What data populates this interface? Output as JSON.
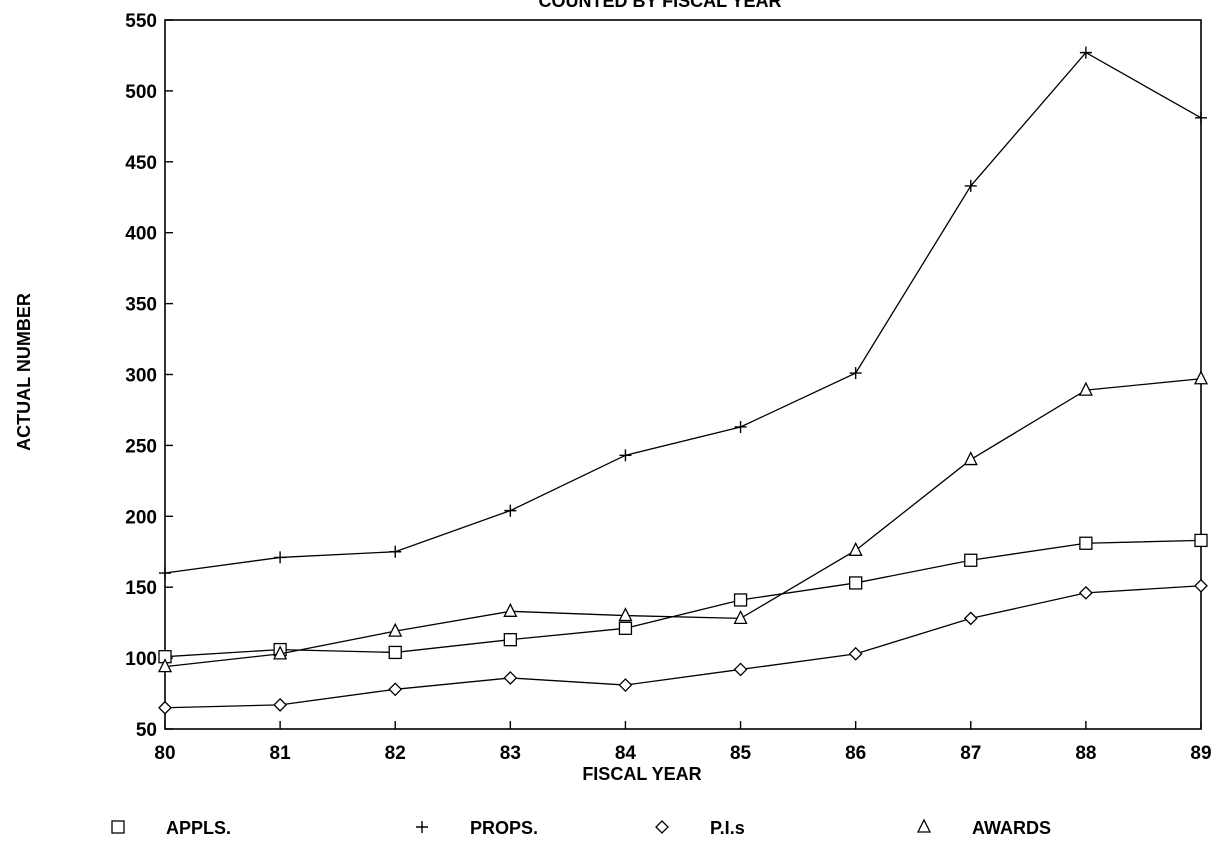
{
  "chart_data": {
    "type": "line",
    "title": "COUNTED BY FISCAL YEAR",
    "xlabel": "FISCAL YEAR",
    "ylabel": "ACTUAL NUMBER",
    "categories": [
      "80",
      "81",
      "82",
      "83",
      "84",
      "85",
      "86",
      "87",
      "88",
      "89"
    ],
    "y_ticks": [
      "50",
      "100",
      "150",
      "200",
      "250",
      "300",
      "350",
      "400",
      "450",
      "500",
      "550"
    ],
    "ylim": [
      50,
      550
    ],
    "grid": false,
    "legend_position": "bottom",
    "series": [
      {
        "name": "APPLS.",
        "marker": "square",
        "values": [
          101,
          106,
          104,
          113,
          121,
          141,
          153,
          169,
          181,
          183
        ]
      },
      {
        "name": "PROPS.",
        "marker": "plus",
        "values": [
          160,
          171,
          175,
          204,
          243,
          263,
          301,
          433,
          527,
          481
        ]
      },
      {
        "name": "P.I.s",
        "marker": "diamond",
        "values": [
          65,
          67,
          78,
          86,
          81,
          92,
          103,
          128,
          146,
          151
        ]
      },
      {
        "name": "AWARDS",
        "marker": "triangle",
        "values": [
          94,
          103,
          119,
          133,
          130,
          128,
          176,
          240,
          289,
          297
        ]
      }
    ]
  }
}
